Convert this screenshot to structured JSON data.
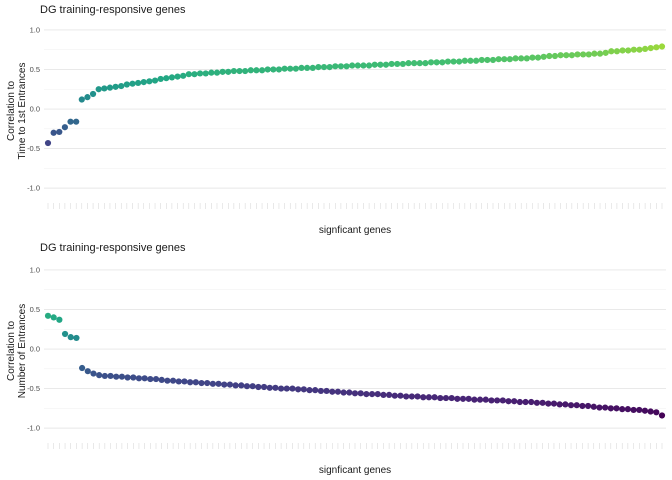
{
  "chart_data": [
    {
      "type": "scatter",
      "title": "DG training-responsive genes",
      "xlabel": "signficant genes",
      "ylabel_lines": [
        "Correlation to",
        "Time to 1st Entrances"
      ],
      "ylim": [
        -1.15,
        1.1
      ],
      "yticks": [
        1.0,
        0.5,
        0.0,
        -0.5,
        -1.0
      ],
      "ytick_labels": [
        "1.0",
        "0.5",
        "0.0",
        "-0.5",
        "-1.0"
      ],
      "grid": true,
      "values": [
        -0.43,
        -0.3,
        -0.29,
        -0.23,
        -0.16,
        -0.16,
        0.12,
        0.15,
        0.19,
        0.25,
        0.26,
        0.27,
        0.28,
        0.29,
        0.31,
        0.32,
        0.33,
        0.34,
        0.35,
        0.36,
        0.38,
        0.39,
        0.4,
        0.41,
        0.42,
        0.44,
        0.44,
        0.45,
        0.45,
        0.46,
        0.46,
        0.47,
        0.47,
        0.48,
        0.48,
        0.48,
        0.49,
        0.49,
        0.49,
        0.5,
        0.5,
        0.5,
        0.51,
        0.51,
        0.51,
        0.52,
        0.52,
        0.52,
        0.53,
        0.53,
        0.53,
        0.54,
        0.54,
        0.54,
        0.55,
        0.55,
        0.55,
        0.55,
        0.56,
        0.56,
        0.56,
        0.57,
        0.57,
        0.57,
        0.58,
        0.58,
        0.58,
        0.58,
        0.59,
        0.59,
        0.59,
        0.6,
        0.6,
        0.6,
        0.61,
        0.61,
        0.61,
        0.62,
        0.62,
        0.62,
        0.63,
        0.63,
        0.63,
        0.64,
        0.64,
        0.64,
        0.65,
        0.65,
        0.66,
        0.67,
        0.67,
        0.68,
        0.68,
        0.68,
        0.69,
        0.69,
        0.69,
        0.7,
        0.7,
        0.71,
        0.73,
        0.73,
        0.74,
        0.74,
        0.75,
        0.75,
        0.76,
        0.77,
        0.78,
        0.79
      ]
    },
    {
      "type": "scatter",
      "title": "DG training-responsive genes",
      "xlabel": "signficant genes",
      "ylabel_lines": [
        "Correlation to",
        "Number of Entrances"
      ],
      "ylim": [
        -1.15,
        1.1
      ],
      "yticks": [
        1.0,
        0.5,
        0.0,
        -0.5,
        -1.0
      ],
      "ytick_labels": [
        "1.0",
        "0.5",
        "0.0",
        "-0.5",
        "-1.0"
      ],
      "grid": true,
      "values": [
        0.42,
        0.4,
        0.37,
        0.19,
        0.15,
        0.14,
        -0.24,
        -0.28,
        -0.31,
        -0.33,
        -0.34,
        -0.34,
        -0.35,
        -0.35,
        -0.36,
        -0.36,
        -0.37,
        -0.37,
        -0.38,
        -0.38,
        -0.39,
        -0.4,
        -0.4,
        -0.41,
        -0.41,
        -0.42,
        -0.42,
        -0.43,
        -0.43,
        -0.44,
        -0.44,
        -0.45,
        -0.45,
        -0.46,
        -0.46,
        -0.47,
        -0.47,
        -0.48,
        -0.48,
        -0.49,
        -0.49,
        -0.5,
        -0.5,
        -0.5,
        -0.51,
        -0.51,
        -0.52,
        -0.52,
        -0.53,
        -0.53,
        -0.54,
        -0.54,
        -0.55,
        -0.55,
        -0.56,
        -0.56,
        -0.57,
        -0.57,
        -0.57,
        -0.58,
        -0.58,
        -0.59,
        -0.59,
        -0.6,
        -0.6,
        -0.6,
        -0.61,
        -0.61,
        -0.61,
        -0.62,
        -0.62,
        -0.62,
        -0.63,
        -0.63,
        -0.63,
        -0.64,
        -0.64,
        -0.64,
        -0.65,
        -0.65,
        -0.65,
        -0.66,
        -0.66,
        -0.67,
        -0.67,
        -0.67,
        -0.68,
        -0.68,
        -0.69,
        -0.69,
        -0.7,
        -0.7,
        -0.71,
        -0.71,
        -0.72,
        -0.72,
        -0.73,
        -0.74,
        -0.74,
        -0.75,
        -0.75,
        -0.76,
        -0.76,
        -0.77,
        -0.77,
        -0.78,
        -0.79,
        -0.8,
        -0.84
      ]
    }
  ]
}
